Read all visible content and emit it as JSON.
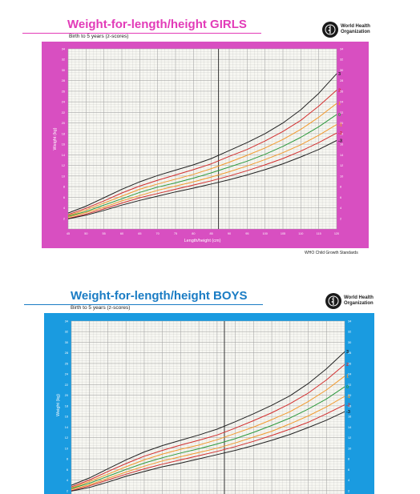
{
  "colors": {
    "girls_accent": "#e23bb8",
    "girls_panel": "#d84fc1",
    "boys_accent": "#1a7cc4",
    "boys_panel": "#1a9be0",
    "grid_paper": "#f7f7f2",
    "grid_line": "#a0a0a0",
    "curve_3": "#222222",
    "curve_2": "#d32f2f",
    "curve_1": "#f29a2e",
    "curve_0": "#2e9a3e",
    "source_text": "#222222"
  },
  "who": {
    "icon": "who-emblem-icon",
    "line1": "World Health",
    "line2": "Organization"
  },
  "source": "WHO Child Growth Standards",
  "chart_data": [
    {
      "type": "line",
      "title": "Weight-for-length/height  GIRLS",
      "subtitle": "Birth to 5 years (z-scores)",
      "xlabel": "Length/height (cm)",
      "ylabel": "Weight (kg)",
      "xlim": [
        45,
        120
      ],
      "ylim": [
        0,
        34
      ],
      "x_ticks": [
        45,
        50,
        55,
        60,
        65,
        70,
        75,
        80,
        85,
        90,
        95,
        100,
        105,
        110,
        115,
        120
      ],
      "y_ticks": [
        2,
        4,
        6,
        8,
        10,
        12,
        14,
        16,
        18,
        20,
        22,
        24,
        26,
        28,
        30,
        32,
        34
      ],
      "x": [
        45,
        50,
        55,
        60,
        65,
        70,
        75,
        80,
        85,
        90,
        95,
        100,
        105,
        110,
        115,
        120
      ],
      "series": [
        {
          "name": "3",
          "color_key": "curve_3",
          "values": [
            3.0,
            4.3,
            5.9,
            7.5,
            8.9,
            10.1,
            11.1,
            12.1,
            13.3,
            14.8,
            16.3,
            18.0,
            20.0,
            22.5,
            25.6,
            29.3
          ]
        },
        {
          "name": "2",
          "color_key": "curve_2",
          "values": [
            2.7,
            3.9,
            5.3,
            6.8,
            8.1,
            9.2,
            10.2,
            11.2,
            12.3,
            13.7,
            15.0,
            16.6,
            18.4,
            20.5,
            23.2,
            26.2
          ]
        },
        {
          "name": "1",
          "color_key": "curve_1",
          "values": [
            2.5,
            3.6,
            4.9,
            6.2,
            7.5,
            8.5,
            9.4,
            10.3,
            11.4,
            12.6,
            13.9,
            15.3,
            16.9,
            18.8,
            21.1,
            23.7
          ]
        },
        {
          "name": "0",
          "color_key": "curve_0",
          "values": [
            2.4,
            3.3,
            4.5,
            5.7,
            6.9,
            7.9,
            8.7,
            9.6,
            10.6,
            11.7,
            12.8,
            14.1,
            15.6,
            17.3,
            19.3,
            21.6
          ]
        },
        {
          "name": "-1",
          "color_key": "curve_1",
          "values": [
            2.2,
            3.1,
            4.1,
            5.3,
            6.3,
            7.3,
            8.1,
            8.9,
            9.8,
            10.8,
            11.9,
            13.1,
            14.4,
            15.9,
            17.7,
            19.7
          ]
        },
        {
          "name": "-2",
          "color_key": "curve_2",
          "values": [
            2.0,
            2.8,
            3.8,
            4.9,
            5.9,
            6.7,
            7.5,
            8.3,
            9.1,
            10.0,
            11.0,
            12.1,
            13.3,
            14.7,
            16.3,
            18.1
          ]
        },
        {
          "name": "-3",
          "color_key": "curve_3",
          "values": [
            1.9,
            2.6,
            3.5,
            4.5,
            5.4,
            6.2,
            7.0,
            7.7,
            8.5,
            9.3,
            10.2,
            11.2,
            12.3,
            13.6,
            15.0,
            16.7
          ]
        }
      ]
    },
    {
      "type": "line",
      "title": "Weight-for-length/height  BOYS",
      "subtitle": "Birth to 5 years (z-scores)",
      "xlabel": "",
      "ylabel": "Weight (kg)",
      "xlim": [
        45,
        120
      ],
      "ylim": [
        0,
        34
      ],
      "y_ticks": [
        2,
        4,
        6,
        8,
        10,
        12,
        14,
        16,
        18,
        20,
        22,
        24,
        26,
        28,
        30,
        32,
        34
      ],
      "x": [
        45,
        50,
        55,
        60,
        65,
        70,
        75,
        80,
        85,
        90,
        95,
        100,
        105,
        110,
        115,
        120
      ],
      "series": [
        {
          "name": "3",
          "color_key": "curve_3",
          "values": [
            3.0,
            4.4,
            6.1,
            7.8,
            9.3,
            10.5,
            11.5,
            12.5,
            13.6,
            15.0,
            16.5,
            18.1,
            19.9,
            22.2,
            25.0,
            28.2
          ]
        },
        {
          "name": "2",
          "color_key": "curve_2",
          "values": [
            2.7,
            4.0,
            5.6,
            7.1,
            8.5,
            9.6,
            10.6,
            11.5,
            12.5,
            13.8,
            15.2,
            16.7,
            18.4,
            20.4,
            22.9,
            25.8
          ]
        },
        {
          "name": "1",
          "color_key": "curve_1",
          "values": [
            2.5,
            3.7,
            5.1,
            6.5,
            7.8,
            8.9,
            9.8,
            10.6,
            11.6,
            12.8,
            14.0,
            15.4,
            16.9,
            18.8,
            21.0,
            23.6
          ]
        },
        {
          "name": "0",
          "color_key": "curve_0",
          "values": [
            2.4,
            3.4,
            4.7,
            6.0,
            7.2,
            8.2,
            9.1,
            9.9,
            10.8,
            11.8,
            13.0,
            14.3,
            15.7,
            17.4,
            19.3,
            21.6
          ]
        },
        {
          "name": "-1",
          "color_key": "curve_1",
          "values": [
            2.2,
            3.1,
            4.3,
            5.5,
            6.6,
            7.6,
            8.4,
            9.2,
            10.0,
            11.0,
            12.1,
            13.2,
            14.6,
            16.1,
            17.8,
            19.8
          ]
        },
        {
          "name": "-2",
          "color_key": "curve_2",
          "values": [
            2.0,
            2.9,
            4.0,
            5.1,
            6.1,
            7.0,
            7.8,
            8.6,
            9.4,
            10.3,
            11.3,
            12.4,
            13.6,
            14.9,
            16.5,
            18.2
          ]
        },
        {
          "name": "-3",
          "color_key": "curve_3",
          "values": [
            1.9,
            2.6,
            3.6,
            4.7,
            5.6,
            6.5,
            7.2,
            8.0,
            8.8,
            9.6,
            10.5,
            11.5,
            12.6,
            13.9,
            15.3,
            16.9
          ]
        }
      ]
    }
  ]
}
